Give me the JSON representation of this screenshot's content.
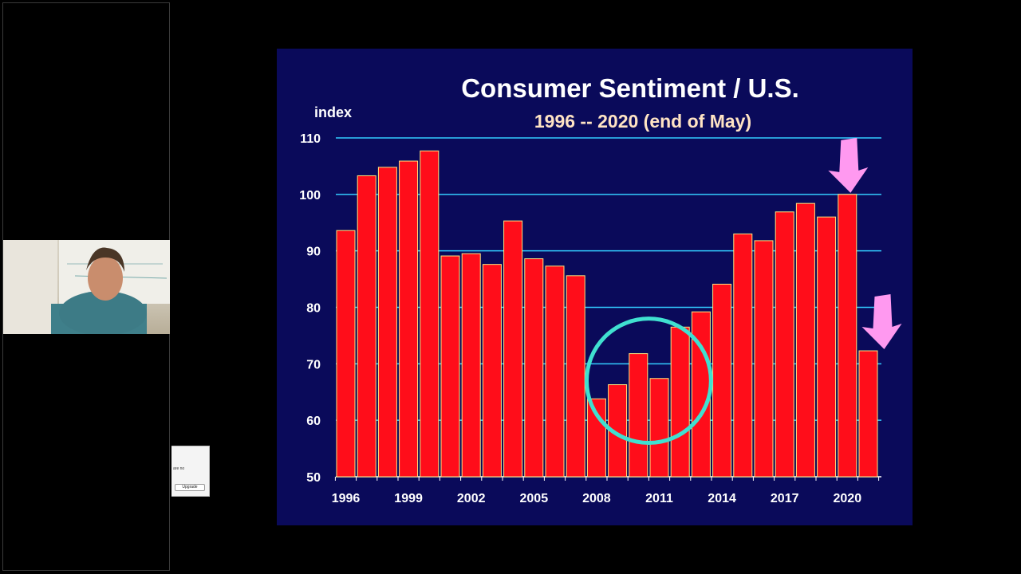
{
  "notice": {
    "text": "are no",
    "button_label": "Upgrade"
  },
  "colors": {
    "slide_bg": "#0a0a5a",
    "bar": "#ff0d1a",
    "bar_edge": "#ffe680",
    "grid": "#33ccff",
    "circle": "#40e0d0",
    "arrow": "#ff99f0",
    "subtitle": "#ffe4c4"
  },
  "chart_data": {
    "type": "bar",
    "title": "Consumer Sentiment / U.S.",
    "subtitle": "1996 -- 2020 (end of May)",
    "ylabel": "index",
    "xlabel": "",
    "ylim": [
      50,
      110
    ],
    "yticks": [
      50,
      60,
      70,
      80,
      90,
      100,
      110
    ],
    "grid": true,
    "categories": [
      "1996",
      "1997",
      "1998",
      "1999",
      "2000",
      "2001",
      "2002",
      "2003",
      "2004",
      "2005",
      "2006",
      "2007",
      "2008",
      "2009",
      "2010",
      "2011",
      "2012",
      "2013",
      "2014",
      "2015",
      "2016",
      "2017",
      "2018",
      "2019",
      "2020",
      "2020 (May)"
    ],
    "x_tick_labels": [
      {
        "index": 0,
        "label": "1996"
      },
      {
        "index": 3,
        "label": "1999"
      },
      {
        "index": 6,
        "label": "2002"
      },
      {
        "index": 9,
        "label": "2005"
      },
      {
        "index": 12,
        "label": "2008"
      },
      {
        "index": 15,
        "label": "2011"
      },
      {
        "index": 18,
        "label": "2014"
      },
      {
        "index": 21,
        "label": "2017"
      },
      {
        "index": 24,
        "label": "2020"
      }
    ],
    "values": [
      93.6,
      103.3,
      104.8,
      105.9,
      107.7,
      89.1,
      89.5,
      87.6,
      95.3,
      88.6,
      87.3,
      85.6,
      63.8,
      66.3,
      71.8,
      67.4,
      76.5,
      79.2,
      84.1,
      93.0,
      91.8,
      96.9,
      98.4,
      96.0,
      100.0,
      72.3
    ],
    "annotations": [
      {
        "type": "circle",
        "center_index": 14.5,
        "center_value": 67,
        "radius_value": 11
      },
      {
        "type": "arrow",
        "points_to_index": 24
      },
      {
        "type": "arrow",
        "points_to_index": 25
      }
    ]
  }
}
